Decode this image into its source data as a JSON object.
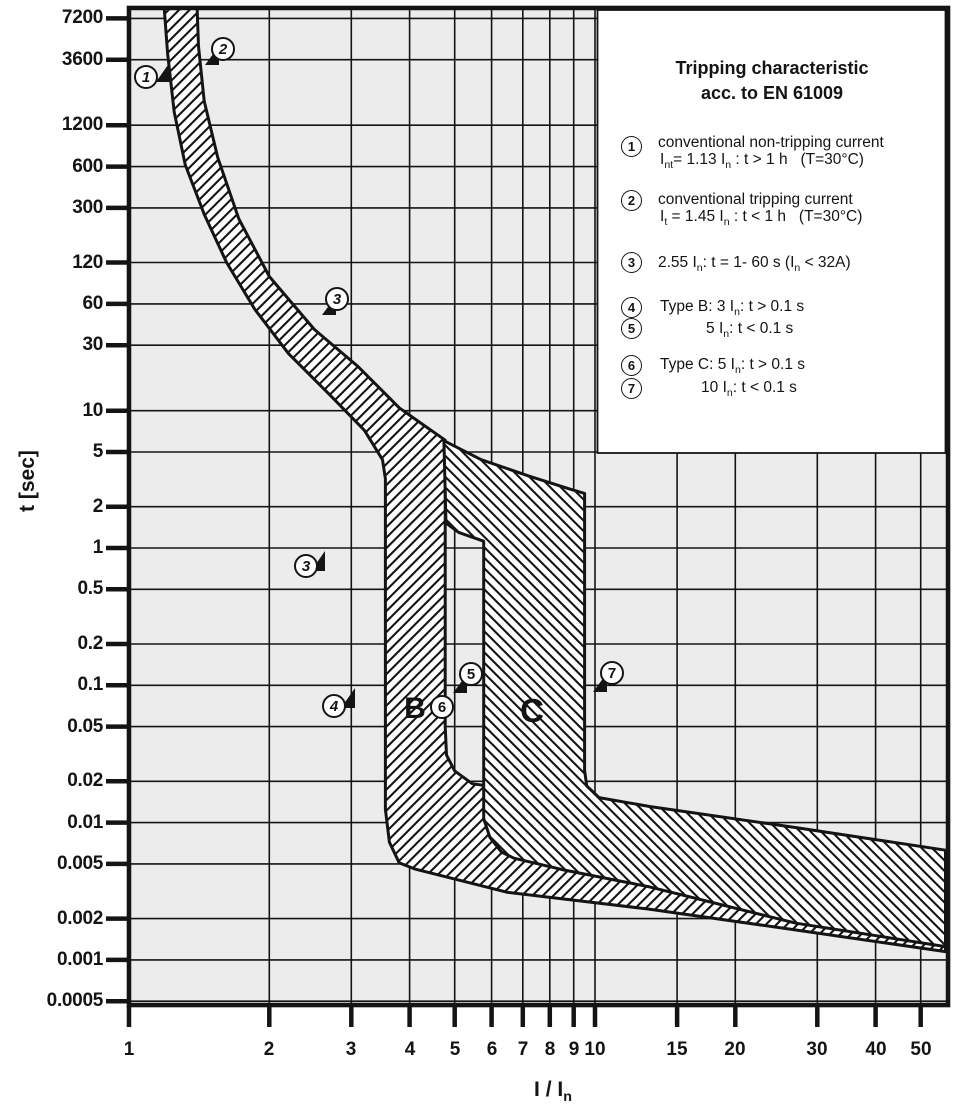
{
  "page": {
    "background": "#ffffff",
    "ink": "#141414",
    "plot_background": "#ececec"
  },
  "figure": {
    "y_axis_title": "t [sec]",
    "x_axis_title_parts": [
      {
        "t": "I / I"
      },
      {
        "t": "n",
        "sub": true
      }
    ]
  },
  "legend": {
    "title_line1": "Tripping characteristic",
    "title_line2": "acc. to EN 61009",
    "items": [
      {
        "num": "1",
        "lines": [
          [
            {
              "t": "conventional non-tripping current"
            }
          ],
          [
            {
              "t": "I"
            },
            {
              "t": "nt",
              "sub": true
            },
            {
              "t": "= 1.13 "
            },
            {
              "t": "I"
            },
            {
              "t": "n",
              "sub": true
            },
            {
              "t": " : t > 1 h   (T=30°C)"
            }
          ]
        ]
      },
      {
        "num": "2",
        "lines": [
          [
            {
              "t": "conventional tripping current"
            }
          ],
          [
            {
              "t": "I"
            },
            {
              "t": "t",
              "sub": true
            },
            {
              "t": " = 1.45 "
            },
            {
              "t": "I"
            },
            {
              "t": "n",
              "sub": true
            },
            {
              "t": " : t < 1 h   (T=30°C)"
            }
          ]
        ]
      },
      {
        "num": "3",
        "lines": [
          [
            {
              "t": "2.55 "
            },
            {
              "t": "I"
            },
            {
              "t": "n",
              "sub": true
            },
            {
              "t": ": t = 1- 60 s ("
            },
            {
              "t": "I"
            },
            {
              "t": "n",
              "sub": true
            },
            {
              "t": " < 32A)"
            }
          ]
        ]
      },
      {
        "num": "4",
        "lines": [
          [
            {
              "t": "Type B: 3 "
            },
            {
              "t": "I"
            },
            {
              "t": "n",
              "sub": true
            },
            {
              "t": ": t > 0.1 s"
            }
          ]
        ]
      },
      {
        "num": "5",
        "lines": [
          [
            {
              "t": "5 "
            },
            {
              "t": "I"
            },
            {
              "t": "n",
              "sub": true
            },
            {
              "t": ": t < 0.1 s"
            }
          ]
        ]
      },
      {
        "num": "6",
        "lines": [
          [
            {
              "t": "Type C: 5 "
            },
            {
              "t": "I"
            },
            {
              "t": "n",
              "sub": true
            },
            {
              "t": ": t > 0.1 s"
            }
          ]
        ]
      },
      {
        "num": "7",
        "lines": [
          [
            {
              "t": "10 "
            },
            {
              "t": "I"
            },
            {
              "t": "n",
              "sub": true
            },
            {
              "t": ": t < 0.1 s"
            }
          ]
        ]
      }
    ]
  },
  "annotations": {
    "curve_markers": [
      {
        "label": "1",
        "I": 1.087,
        "t": 2700,
        "italic": true,
        "tip": {
          "I": 1.224,
          "t": 3450,
          "dir": "ne"
        }
      },
      {
        "label": "2",
        "I": 1.59,
        "t": 4300,
        "italic": true,
        "tip": {
          "I": 1.454,
          "t": 3300,
          "dir": "sw"
        }
      },
      {
        "label": "3",
        "I": 2.8,
        "t": 65,
        "italic": true,
        "tip": {
          "I": 2.59,
          "t": 50,
          "dir": "sw"
        }
      },
      {
        "label": "3",
        "I": 2.4,
        "t": 0.74,
        "italic": true,
        "tip": {
          "I": 2.63,
          "t": 0.95,
          "dir": "ne"
        }
      },
      {
        "label": "4",
        "I": 2.76,
        "t": 0.071,
        "italic": true,
        "tip": {
          "I": 3.05,
          "t": 0.095,
          "dir": "ne"
        }
      },
      {
        "label": "5",
        "I": 5.42,
        "t": 0.121,
        "tip": {
          "I": 4.95,
          "t": 0.088,
          "dir": "sw"
        }
      },
      {
        "label": "6",
        "I": 4.7,
        "t": 0.0695
      },
      {
        "label": "7",
        "I": 10.9,
        "t": 0.123,
        "tip": {
          "I": 9.92,
          "t": 0.089,
          "dir": "sw"
        }
      }
    ],
    "zone_letters": [
      {
        "label": "B",
        "I": 4.11,
        "t": 0.067
      },
      {
        "label": "C",
        "I": 7.31,
        "t": 0.065
      }
    ]
  },
  "chart_data": {
    "type": "area",
    "title": "Tripping characteristic acc. to EN 61009",
    "xlabel": "I / In",
    "ylabel": "t [sec]",
    "x_scale": "log",
    "y_scale": "log",
    "xlim": [
      1,
      56.5
    ],
    "ylim": [
      0.00036,
      8600
    ],
    "grid": true,
    "legend_position": "top-right",
    "x_ticks": [
      1,
      2,
      3,
      4,
      5,
      6,
      7,
      8,
      9,
      10,
      15,
      20,
      30,
      40,
      50
    ],
    "y_ticks": [
      7200,
      3600,
      1200,
      600,
      300,
      120,
      60,
      30,
      10,
      5,
      2,
      1,
      0.5,
      0.2,
      0.1,
      0.05,
      0.02,
      0.01,
      0.005,
      0.002,
      0.001,
      0.0005
    ],
    "curves": {
      "1": "conventional non-tripping current Int = 1.13 In : t > 1 h (T=30°C)",
      "2": "conventional tripping current It = 1.45 In : t < 1 h (T=30°C)",
      "3": "2.55 In : t = 1-60 s (In < 32A)",
      "4": "Type B: 3 In : t > 0.1 s",
      "5": "Type B: 5 In : t < 0.1 s",
      "6": "Type C: 5 In : t > 0.1 s",
      "7": "Type C: 10 In : t < 0.1 s"
    },
    "bands": [
      {
        "name": "type-B-tripping-band",
        "hatch": "fwd",
        "outline": [
          [
            1.19,
            8600
          ],
          [
            1.21,
            4000
          ],
          [
            1.25,
            1500
          ],
          [
            1.32,
            620
          ],
          [
            1.45,
            270
          ],
          [
            1.62,
            120
          ],
          [
            1.86,
            55
          ],
          [
            2.2,
            26
          ],
          [
            2.7,
            13
          ],
          [
            3.2,
            7.2
          ],
          [
            3.5,
            4.4
          ],
          [
            3.55,
            3.2
          ],
          [
            3.55,
            0.0125
          ],
          [
            3.62,
            0.0072
          ],
          [
            3.8,
            0.0051
          ],
          [
            4.1,
            0.0046
          ],
          [
            6.5,
            0.0031
          ],
          [
            13,
            0.00235
          ],
          [
            27,
            0.00165
          ],
          [
            56.5,
            0.00115
          ],
          [
            56.5,
            0.0061
          ],
          [
            27,
            0.0089
          ],
          [
            13,
            0.0127
          ],
          [
            7.5,
            0.0163
          ],
          [
            5.45,
            0.0192
          ],
          [
            5.0,
            0.0238
          ],
          [
            4.8,
            0.031
          ],
          [
            4.77,
            0.05
          ],
          [
            4.77,
            6.1
          ],
          [
            4.3,
            7.8
          ],
          [
            3.8,
            10.5
          ],
          [
            3.1,
            21
          ],
          [
            2.5,
            39
          ],
          [
            2.0,
            95
          ],
          [
            1.72,
            250
          ],
          [
            1.55,
            700
          ],
          [
            1.45,
            1800
          ],
          [
            1.41,
            4500
          ],
          [
            1.4,
            8600
          ]
        ]
      },
      {
        "name": "type-C-tripping-band",
        "hatch": "bwd",
        "outline": [
          [
            4.79,
            1.52
          ],
          [
            5.1,
            1.3
          ],
          [
            5.77,
            1.12
          ],
          [
            5.77,
            0.0107
          ],
          [
            5.95,
            0.0078
          ],
          [
            6.3,
            0.0061
          ],
          [
            6.7,
            0.0055
          ],
          [
            8.5,
            0.00455
          ],
          [
            13.1,
            0.0034
          ],
          [
            27,
            0.00185
          ],
          [
            56.5,
            0.00125
          ],
          [
            56.5,
            0.0063
          ],
          [
            27,
            0.0092
          ],
          [
            13.1,
            0.0131
          ],
          [
            10.2,
            0.0152
          ],
          [
            9.6,
            0.0185
          ],
          [
            9.5,
            0.024
          ],
          [
            9.5,
            2.5
          ],
          [
            8.8,
            2.7
          ],
          [
            7.2,
            3.35
          ],
          [
            5.7,
            4.4
          ],
          [
            4.74,
            6.05
          ]
        ]
      }
    ]
  }
}
